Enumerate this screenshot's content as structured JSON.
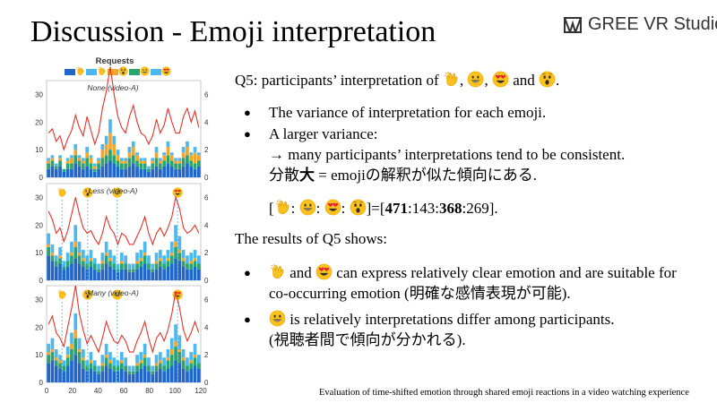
{
  "slide": {
    "title": "Discussion - Emoji interpretation",
    "logo_text": "GREE VR Studio",
    "footer": "Evaluation of time-shifted emotion through shared emoji reactions in a video watching experience"
  },
  "q5": {
    "pre": "Q5: participants’ interpretation of",
    "sep1": ",",
    "sep2": ",",
    "and": "and",
    "end": "."
  },
  "bullets1": {
    "b1": "The variance of interpretation for each emoji.",
    "b2": "A larger variance:",
    "b2_line2": "→ many participants’ interpretations tend to be consistent.",
    "b2_line3_pre": "分散",
    "b2_line3_bold": "大",
    "b2_line3_post": "= emojiの解釈が似た傾向にある."
  },
  "ratio": {
    "open": "[",
    "colon": ":",
    "mid": "]=[",
    "v1": "471",
    "v2": "143",
    "v3": "368",
    "v4": "269",
    "close": "]."
  },
  "results": {
    "heading": "The results of Q5 shows:",
    "b1_and": "and",
    "b1_rest": "can express relatively clear emotion and are suitable for",
    "b1_line2": "co-occurring emotion (明確な感情表現が可能).",
    "b2_rest": "is relatively interpretations differ among participants.",
    "b2_line2": "(視聴者間で傾向が分かれる)."
  },
  "chart_data": {
    "type": "bar",
    "title": "Requests",
    "x_ticks": [
      "0",
      "20",
      "40",
      "60",
      "80",
      "100",
      "120"
    ],
    "xlim": [
      0,
      120
    ],
    "legend_icons": [
      "clap",
      "clap-dark",
      "astonished",
      "smile",
      "heart-eyes"
    ],
    "colors": {
      "blue": "#2166c9",
      "green": "#2ba36f",
      "orange": "#f4a62a",
      "sky": "#4db8ee",
      "line": "#e4312b"
    },
    "panels": [
      {
        "label": "None (video-A)",
        "y_ticks_left": [
          "0",
          "10",
          "20",
          "30"
        ],
        "ylim_left": [
          0,
          35
        ],
        "y_ticks_right": [
          "0",
          "2",
          "4",
          "6"
        ],
        "ylim_right": [
          0,
          7
        ],
        "markers": [],
        "blue": [
          3,
          4,
          3,
          4,
          2,
          3,
          3,
          5,
          4,
          3,
          4,
          3,
          2,
          3,
          4,
          5,
          6,
          5,
          4,
          3,
          3,
          4,
          5,
          4,
          3,
          3,
          2,
          3,
          4,
          3,
          4,
          5,
          4,
          3,
          3,
          4,
          5,
          4,
          3,
          4
        ],
        "green": [
          2,
          2,
          1,
          2,
          1,
          2,
          2,
          3,
          2,
          2,
          3,
          2,
          1,
          2,
          3,
          3,
          4,
          3,
          2,
          2,
          2,
          3,
          3,
          2,
          2,
          2,
          1,
          2,
          3,
          2,
          2,
          3,
          2,
          2,
          2,
          3,
          3,
          2,
          2,
          2
        ],
        "orange": [
          1,
          1,
          0,
          1,
          0,
          1,
          2,
          2,
          1,
          1,
          2,
          2,
          1,
          1,
          3,
          4,
          6,
          4,
          2,
          1,
          1,
          2,
          3,
          2,
          1,
          1,
          0,
          1,
          2,
          1,
          2,
          3,
          2,
          1,
          1,
          2,
          3,
          2,
          4,
          2
        ],
        "sky": [
          1,
          1,
          1,
          1,
          0,
          1,
          1,
          2,
          1,
          1,
          2,
          1,
          1,
          1,
          2,
          3,
          5,
          3,
          2,
          1,
          1,
          2,
          2,
          1,
          1,
          1,
          1,
          1,
          2,
          1,
          1,
          2,
          1,
          1,
          1,
          2,
          2,
          1,
          2,
          1
        ],
        "line": [
          3.2,
          3.5,
          2.6,
          3.0,
          2.0,
          2.8,
          3.4,
          4.5,
          3.6,
          3.0,
          4.4,
          3.4,
          2.4,
          3.2,
          5.0,
          6.2,
          8.0,
          6.0,
          4.4,
          3.6,
          3.2,
          4.4,
          5.2,
          4.0,
          3.2,
          3.0,
          2.4,
          3.0,
          4.2,
          3.2,
          3.8,
          5.0,
          4.0,
          3.2,
          3.2,
          4.4,
          5.0,
          4.0,
          4.8,
          3.6
        ]
      },
      {
        "label": "Less (video-A)",
        "y_ticks_left": [
          "0",
          "10",
          "20",
          "30"
        ],
        "ylim_left": [
          0,
          35
        ],
        "y_ticks_right": [
          "0",
          "2",
          "4",
          "6"
        ],
        "ylim_right": [
          0,
          7
        ],
        "markers": [
          {
            "x": 12,
            "icon": "clap"
          },
          {
            "x": 32,
            "icon": "astonished"
          },
          {
            "x": 55,
            "icon": "smile"
          },
          {
            "x": 102,
            "icon": "heart-eyes"
          }
        ],
        "blue": [
          9,
          7,
          5,
          6,
          4,
          5,
          6,
          8,
          6,
          5,
          4,
          5,
          4,
          3,
          4,
          6,
          5,
          4,
          3,
          4,
          4,
          3,
          3,
          4,
          5,
          6,
          4,
          3,
          4,
          5,
          4,
          5,
          6,
          8,
          7,
          5,
          4,
          4,
          5,
          4
        ],
        "green": [
          3,
          2,
          2,
          2,
          1,
          2,
          3,
          4,
          3,
          2,
          2,
          2,
          2,
          1,
          2,
          3,
          2,
          2,
          1,
          2,
          2,
          1,
          1,
          2,
          2,
          3,
          2,
          1,
          2,
          2,
          2,
          2,
          3,
          4,
          3,
          2,
          2,
          2,
          2,
          2
        ],
        "orange": [
          1,
          1,
          0,
          1,
          0,
          0,
          1,
          2,
          1,
          1,
          0,
          1,
          0,
          0,
          1,
          1,
          1,
          0,
          0,
          1,
          0,
          0,
          0,
          1,
          1,
          1,
          0,
          0,
          1,
          1,
          0,
          1,
          1,
          2,
          1,
          1,
          0,
          1,
          1,
          0
        ],
        "sky": [
          4,
          3,
          2,
          3,
          2,
          3,
          4,
          6,
          4,
          3,
          3,
          3,
          2,
          2,
          3,
          4,
          3,
          3,
          2,
          3,
          3,
          2,
          2,
          3,
          3,
          4,
          3,
          2,
          3,
          3,
          3,
          3,
          4,
          6,
          5,
          3,
          3,
          3,
          3,
          3
        ],
        "line": [
          5.0,
          4.4,
          3.4,
          3.8,
          2.8,
          3.6,
          4.8,
          6.0,
          4.8,
          3.8,
          3.4,
          3.6,
          3.0,
          2.6,
          3.4,
          4.6,
          3.8,
          3.4,
          2.6,
          3.4,
          3.2,
          2.6,
          2.6,
          3.2,
          3.8,
          4.6,
          3.4,
          2.6,
          3.4,
          3.8,
          3.2,
          3.8,
          4.6,
          6.0,
          5.2,
          3.8,
          3.4,
          3.6,
          4.0,
          3.4
        ]
      },
      {
        "label": "Many (video-A)",
        "y_ticks_left": [
          "0",
          "10",
          "20",
          "30"
        ],
        "ylim_left": [
          0,
          35
        ],
        "y_ticks_right": [
          "0",
          "2",
          "4",
          "6"
        ],
        "ylim_right": [
          0,
          7
        ],
        "markers": [
          {
            "x": 12,
            "icon": "clap"
          },
          {
            "x": 32,
            "icon": "astonished"
          },
          {
            "x": 55,
            "icon": "smile"
          },
          {
            "x": 102,
            "icon": "heart-eyes"
          }
        ],
        "blue": [
          7,
          8,
          6,
          5,
          4,
          6,
          8,
          10,
          7,
          5,
          4,
          5,
          4,
          3,
          4,
          6,
          5,
          4,
          4,
          5,
          4,
          3,
          3,
          4,
          5,
          6,
          4,
          3,
          4,
          5,
          4,
          5,
          6,
          8,
          7,
          5,
          4,
          5,
          6,
          5
        ],
        "green": [
          3,
          3,
          2,
          2,
          2,
          3,
          4,
          6,
          4,
          3,
          2,
          2,
          2,
          1,
          2,
          3,
          2,
          2,
          2,
          2,
          2,
          1,
          1,
          2,
          2,
          3,
          2,
          1,
          2,
          2,
          2,
          3,
          4,
          5,
          4,
          3,
          2,
          2,
          3,
          2
        ],
        "orange": [
          1,
          1,
          1,
          1,
          0,
          1,
          2,
          3,
          1,
          1,
          0,
          1,
          0,
          0,
          1,
          1,
          1,
          0,
          0,
          1,
          0,
          0,
          0,
          1,
          1,
          1,
          0,
          0,
          1,
          1,
          0,
          1,
          2,
          2,
          1,
          1,
          0,
          1,
          1,
          0
        ],
        "sky": [
          3,
          4,
          3,
          2,
          2,
          3,
          4,
          6,
          4,
          3,
          2,
          3,
          2,
          2,
          3,
          4,
          3,
          3,
          2,
          3,
          3,
          2,
          2,
          3,
          3,
          4,
          3,
          2,
          3,
          3,
          3,
          3,
          4,
          6,
          5,
          3,
          3,
          3,
          4,
          3
        ],
        "line": [
          4.2,
          4.8,
          3.6,
          3.2,
          2.6,
          4.0,
          5.4,
          7.0,
          5.0,
          3.8,
          2.8,
          3.4,
          2.8,
          2.2,
          3.2,
          4.4,
          3.6,
          3.0,
          2.8,
          3.4,
          3.0,
          2.2,
          2.2,
          3.0,
          3.6,
          4.4,
          3.2,
          2.2,
          3.2,
          3.6,
          3.0,
          3.8,
          5.0,
          6.6,
          5.4,
          3.8,
          3.0,
          3.6,
          4.4,
          3.6
        ]
      }
    ]
  }
}
